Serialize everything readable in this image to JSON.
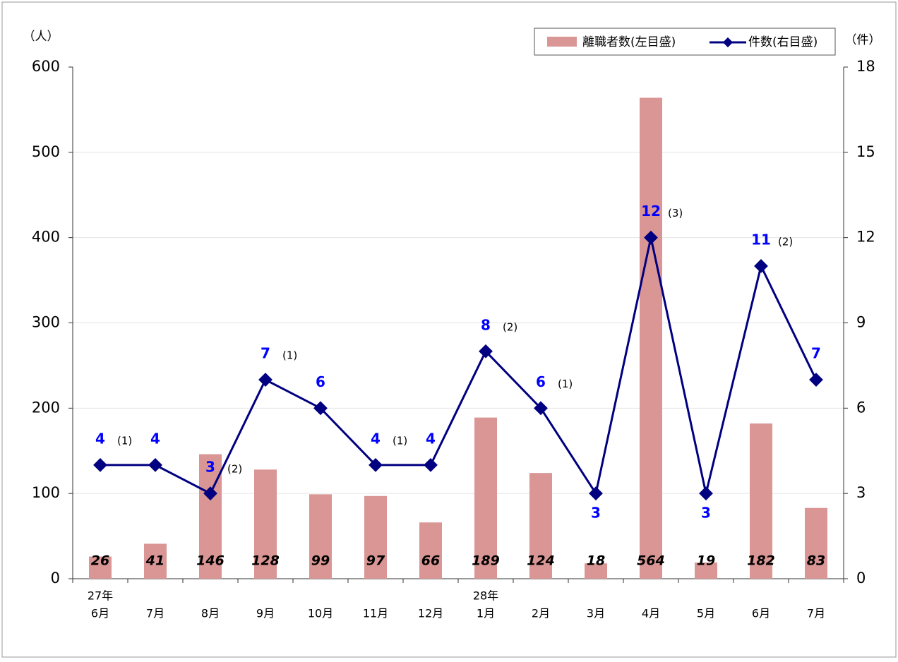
{
  "chart_data": {
    "type": "bar-line",
    "y_label": "（人）",
    "y2_label": "（件）",
    "categories": [
      "6月",
      "7月",
      "8月",
      "9月",
      "10月",
      "11月",
      "12月",
      "1月",
      "2月",
      "3月",
      "4月",
      "5月",
      "6月",
      "7月"
    ],
    "year_labels": [
      "27年",
      null,
      null,
      null,
      null,
      null,
      null,
      "28年",
      null,
      null,
      null,
      null,
      null,
      null
    ],
    "series": [
      {
        "name": "離職者数(左目盛)",
        "color": "#d99694",
        "values": [
          26,
          41,
          146,
          128,
          99,
          97,
          66,
          189,
          124,
          18,
          564,
          19,
          182,
          83
        ]
      },
      {
        "name": "件数(右目盛)",
        "color": "#000080",
        "axis": "y2",
        "values": [
          4,
          4,
          3,
          7,
          6,
          4,
          4,
          8,
          6,
          3,
          12,
          3,
          11,
          7
        ],
        "notes": [
          "(1)",
          null,
          "(2)",
          "(1)",
          null,
          "(1)",
          null,
          "(2)",
          "(1)",
          null,
          "(3)",
          null,
          "(2)",
          null
        ]
      }
    ],
    "ylim": [
      0,
      600
    ],
    "yticks": [
      0,
      100,
      200,
      300,
      400,
      500,
      600
    ],
    "y2lim": [
      0,
      18
    ],
    "y2ticks": [
      0,
      3,
      6,
      9,
      12,
      15,
      18
    ],
    "grid": true
  }
}
